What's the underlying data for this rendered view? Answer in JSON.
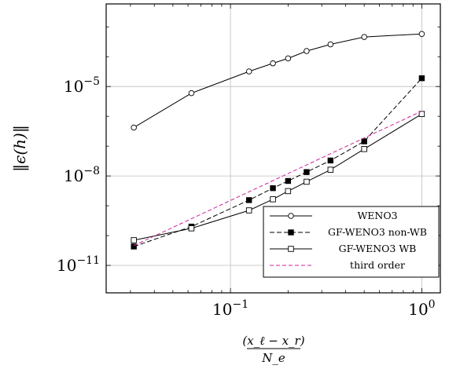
{
  "chart_data": {
    "type": "line",
    "title": "",
    "xlabel": {
      "numerator": "(x_ℓ − x_r)",
      "denominator": "N_e"
    },
    "ylabel": "‖ϵ(h)‖",
    "xscale": "log",
    "yscale": "log",
    "xlim": [
      0.0224,
      1.25
    ],
    "ylim": [
      1.2e-12,
      0.0059
    ],
    "grid": true,
    "legend_position": "bottom-right",
    "x_ticks": [
      {
        "base": "10",
        "exp": "−1"
      },
      {
        "base": "10",
        "exp": "0"
      }
    ],
    "y_ticks": [
      {
        "base": "10",
        "exp": "−5"
      },
      {
        "base": "10",
        "exp": "−8"
      },
      {
        "base": "10",
        "exp": "−11"
      }
    ],
    "series": [
      {
        "name": "WENO3",
        "line": "solid",
        "marker": "open-circle",
        "color": "#000000",
        "x": [
          0.03125,
          0.0625,
          0.125,
          0.16667,
          0.2,
          0.25,
          0.33333,
          0.5,
          1.0
        ],
        "y": [
          4.2e-07,
          6e-06,
          3.2e-05,
          6e-05,
          8.8e-05,
          0.000155,
          0.00026,
          0.00046,
          0.00058
        ]
      },
      {
        "name": "GF-WENO3 non-WB",
        "line": "dashed",
        "marker": "filled-square",
        "color": "#000000",
        "x": [
          0.03125,
          0.0625,
          0.125,
          0.16667,
          0.2,
          0.25,
          0.33333,
          0.5,
          1.0
        ],
        "y": [
          4.3e-11,
          2e-10,
          1.55e-09,
          3.9e-09,
          6.8e-09,
          1.35e-08,
          3.3e-08,
          1.45e-07,
          1.9e-05
        ]
      },
      {
        "name": "GF-WENO3 WB",
        "line": "solid",
        "marker": "open-square",
        "color": "#000000",
        "x": [
          0.03125,
          0.0625,
          0.125,
          0.16667,
          0.2,
          0.25,
          0.33333,
          0.5,
          1.0
        ],
        "y": [
          7e-11,
          1.75e-10,
          7e-10,
          1.65e-09,
          3.1e-09,
          6.4e-09,
          1.62e-08,
          8e-08,
          1.2e-06
        ]
      },
      {
        "name": "third order",
        "line": "dashed",
        "marker": "none",
        "color": "#cc2299",
        "x": [
          0.03125,
          1.0
        ],
        "y": [
          4.6e-11,
          1.5e-06
        ]
      }
    ]
  }
}
